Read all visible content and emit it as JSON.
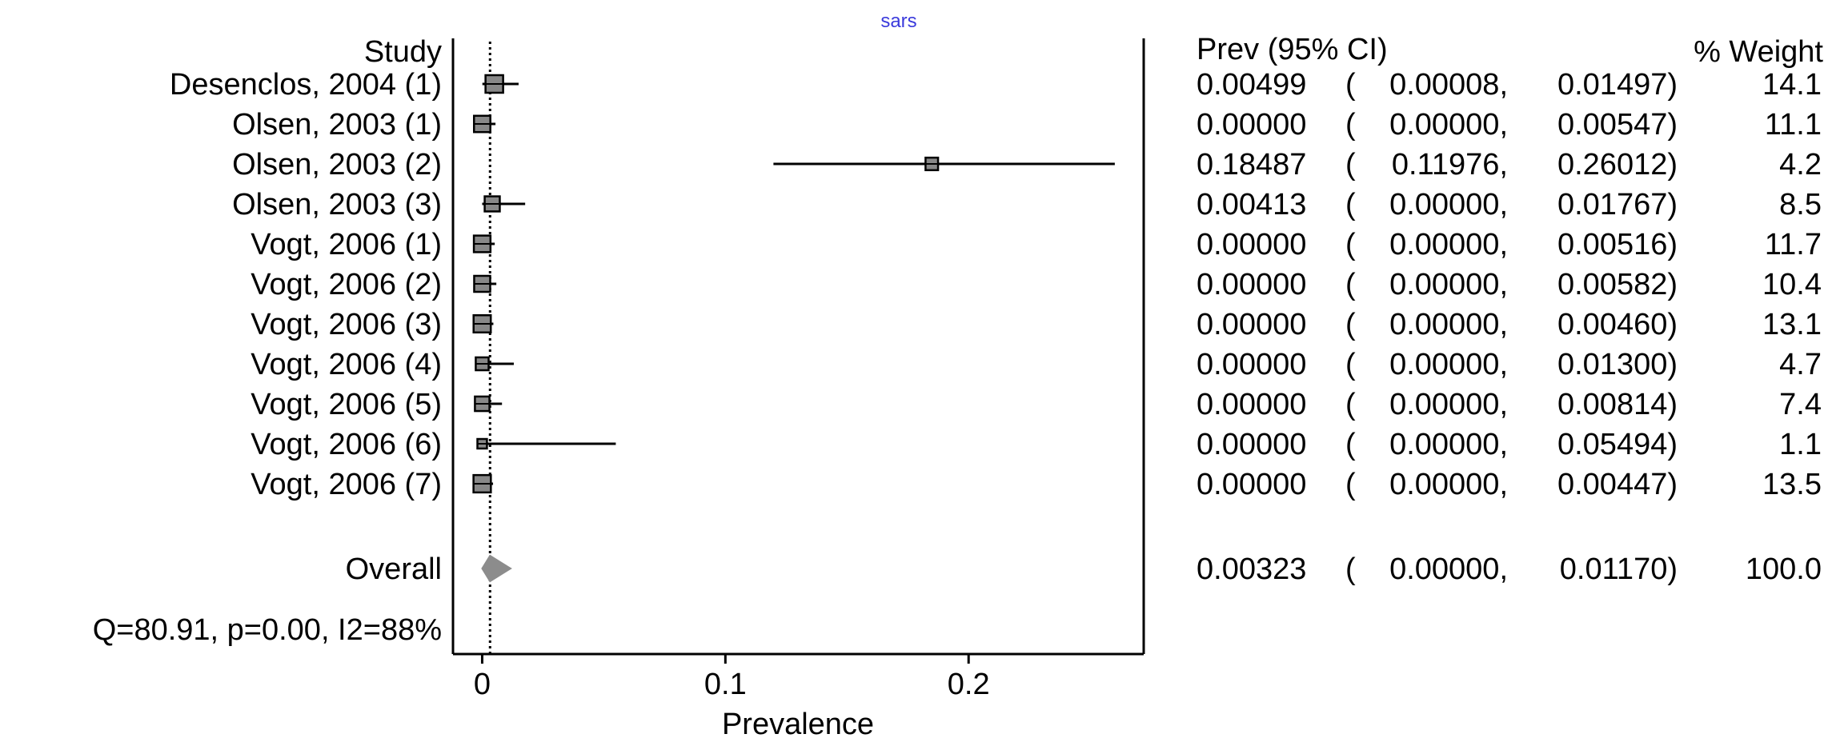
{
  "chart_data": {
    "type": "forest",
    "title": "sars",
    "study_header": "Study",
    "prev_header": "Prev (95% CI)",
    "weight_header": "% Weight",
    "xlabel": "Prevalence",
    "xlim": [
      -0.012,
      0.272
    ],
    "xticks": [
      {
        "value": 0,
        "label": "0"
      },
      {
        "value": 0.1,
        "label": "0.1"
      },
      {
        "value": 0.2,
        "label": "0.2"
      }
    ],
    "studies": [
      {
        "label": "Desenclos, 2004 (1)",
        "prev": 0.00499,
        "lo": 8e-05,
        "hi": 0.01497,
        "prev_text": "0.00499",
        "lo_text": "0.00008,",
        "hi_text": "0.01497)",
        "weight": 14.1,
        "weight_text": "14.1"
      },
      {
        "label": "Olsen, 2003 (1)",
        "prev": 0.0,
        "lo": 0.0,
        "hi": 0.00547,
        "prev_text": "0.00000",
        "lo_text": "0.00000,",
        "hi_text": "0.00547)",
        "weight": 11.1,
        "weight_text": "11.1"
      },
      {
        "label": "Olsen, 2003 (2)",
        "prev": 0.18487,
        "lo": 0.11976,
        "hi": 0.26012,
        "prev_text": "0.18487",
        "lo_text": "0.11976,",
        "hi_text": "0.26012)",
        "weight": 4.2,
        "weight_text": "4.2"
      },
      {
        "label": "Olsen, 2003 (3)",
        "prev": 0.00413,
        "lo": 0.0,
        "hi": 0.01767,
        "prev_text": "0.00413",
        "lo_text": "0.00000,",
        "hi_text": "0.01767)",
        "weight": 8.5,
        "weight_text": "8.5"
      },
      {
        "label": "Vogt, 2006 (1)",
        "prev": 0.0,
        "lo": 0.0,
        "hi": 0.00516,
        "prev_text": "0.00000",
        "lo_text": "0.00000,",
        "hi_text": "0.00516)",
        "weight": 11.7,
        "weight_text": "11.7"
      },
      {
        "label": "Vogt, 2006 (2)",
        "prev": 0.0,
        "lo": 0.0,
        "hi": 0.00582,
        "prev_text": "0.00000",
        "lo_text": "0.00000,",
        "hi_text": "0.00582)",
        "weight": 10.4,
        "weight_text": "10.4"
      },
      {
        "label": "Vogt, 2006 (3)",
        "prev": 0.0,
        "lo": 0.0,
        "hi": 0.0046,
        "prev_text": "0.00000",
        "lo_text": "0.00000,",
        "hi_text": "0.00460)",
        "weight": 13.1,
        "weight_text": "13.1"
      },
      {
        "label": "Vogt, 2006 (4)",
        "prev": 0.0,
        "lo": 0.0,
        "hi": 0.013,
        "prev_text": "0.00000",
        "lo_text": "0.00000,",
        "hi_text": "0.01300)",
        "weight": 4.7,
        "weight_text": "4.7"
      },
      {
        "label": "Vogt, 2006 (5)",
        "prev": 0.0,
        "lo": 0.0,
        "hi": 0.00814,
        "prev_text": "0.00000",
        "lo_text": "0.00000,",
        "hi_text": "0.00814)",
        "weight": 7.4,
        "weight_text": "7.4"
      },
      {
        "label": "Vogt, 2006 (6)",
        "prev": 0.0,
        "lo": 0.0,
        "hi": 0.05494,
        "prev_text": "0.00000",
        "lo_text": "0.00000,",
        "hi_text": "0.05494)",
        "weight": 1.1,
        "weight_text": "1.1"
      },
      {
        "label": "Vogt, 2006 (7)",
        "prev": 0.0,
        "lo": 0.0,
        "hi": 0.00447,
        "prev_text": "0.00000",
        "lo_text": "0.00000,",
        "hi_text": "0.00447)",
        "weight": 13.5,
        "weight_text": "13.5"
      }
    ],
    "overall": {
      "label": "Overall",
      "prev": 0.00323,
      "lo": 0.0,
      "hi": 0.0117,
      "prev_text": "0.00323",
      "lo_text": "0.00000,",
      "hi_text": "0.01170)",
      "weight": 100.0,
      "weight_text": "100.0"
    },
    "heterogeneity": "Q=80.91, p=0.00, I2=88%",
    "colors": {
      "box_fill": "#888888",
      "diamond": "#8c8c8c",
      "line": "#000000",
      "title": "#3b3bdc"
    }
  }
}
